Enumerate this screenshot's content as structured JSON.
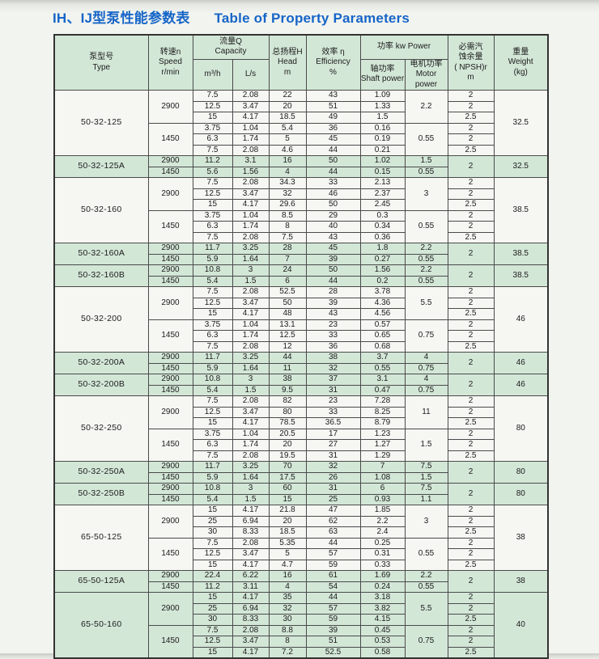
{
  "title": {
    "zh": "IH、IJ型泵性能参数表",
    "en": "Table of Property Parameters"
  },
  "colors": {
    "title_blue": "#1665c8",
    "row_green": "#d3e7d7",
    "row_white": "#f6f7f3",
    "border": "#4a4a4a",
    "page_bg": "#f2f4ef"
  },
  "header": {
    "type": "泵型号\nType",
    "speed": "转速n\nSpeed\nr/min",
    "capacity": "流量Q\nCapacity",
    "m3h": "m³/h",
    "ls": "L/s",
    "head": "总扬程H\nHead\nm",
    "efficiency": "效率 η\nEfficiency\n%",
    "power": "功率  kw  Power",
    "shaft": "轴功率\nShaft power",
    "motor": "电机功率\nMotor power",
    "npsh": "必需汽\n蚀余量\n( NPSH)r\nm",
    "weight": "重量\nWeight\n(kg)"
  },
  "groups": [
    {
      "model": "50-32-125",
      "weight": "32.5",
      "bg": "white",
      "speeds": [
        {
          "rpm": "2900",
          "motor": "2.2",
          "rows": [
            [
              "7.5",
              "2.08",
              "22",
              "43",
              "1.09"
            ],
            [
              "12.5",
              "3.47",
              "20",
              "51",
              "1.33"
            ],
            [
              "15",
              "4.17",
              "18.5",
              "49",
              "1.5"
            ]
          ]
        },
        {
          "rpm": "1450",
          "motor": "0.55",
          "rows": [
            [
              "3.75",
              "1.04",
              "5.4",
              "36",
              "0.16"
            ],
            [
              "6.3",
              "1.74",
              "5",
              "45",
              "0.19"
            ],
            [
              "7.5",
              "2.08",
              "4.6",
              "44",
              "0.21"
            ]
          ]
        }
      ],
      "npsh": [
        "2",
        "2",
        "2.5",
        "2",
        "2",
        "2.5"
      ]
    },
    {
      "model": "50-32-125A",
      "weight": "32.5",
      "bg": "green",
      "speeds": [
        {
          "rpm": "2900",
          "motor": "1.5",
          "rows": [
            [
              "11.2",
              "3.1",
              "16",
              "50",
              "1.02"
            ]
          ]
        },
        {
          "rpm": "1450",
          "motor": "0.55",
          "rows": [
            [
              "5.6",
              "1.56",
              "4",
              "44",
              "0.15"
            ]
          ]
        }
      ],
      "npsh": "2"
    },
    {
      "model": "50-32-160",
      "weight": "38.5",
      "bg": "white",
      "speeds": [
        {
          "rpm": "2900",
          "motor": "3",
          "rows": [
            [
              "7.5",
              "2.08",
              "34.3",
              "33",
              "2.13"
            ],
            [
              "12.5",
              "3.47",
              "32",
              "46",
              "2.37"
            ],
            [
              "15",
              "4.17",
              "29.6",
              "50",
              "2.45"
            ]
          ]
        },
        {
          "rpm": "1450",
          "motor": "0.55",
          "rows": [
            [
              "3.75",
              "1.04",
              "8.5",
              "29",
              "0.3"
            ],
            [
              "6.3",
              "1.74",
              "8",
              "40",
              "0.34"
            ],
            [
              "7.5",
              "2.08",
              "7.5",
              "43",
              "0.36"
            ]
          ]
        }
      ],
      "npsh": [
        "2",
        "2",
        "2.5",
        "2",
        "2",
        "2.5"
      ]
    },
    {
      "model": "50-32-160A",
      "weight": "38.5",
      "bg": "green",
      "speeds": [
        {
          "rpm": "2900",
          "motor": "2.2",
          "rows": [
            [
              "11.7",
              "3.25",
              "28",
              "45",
              "1.8"
            ]
          ]
        },
        {
          "rpm": "1450",
          "motor": "0.55",
          "rows": [
            [
              "5.9",
              "1.64",
              "7",
              "39",
              "0.27"
            ]
          ]
        }
      ],
      "npsh": "2"
    },
    {
      "model": "50-32-160B",
      "weight": "38.5",
      "bg": "green",
      "speeds": [
        {
          "rpm": "2900",
          "motor": "2.2",
          "rows": [
            [
              "10.8",
              "3",
              "24",
              "50",
              "1.56"
            ]
          ]
        },
        {
          "rpm": "1450",
          "motor": "0.55",
          "rows": [
            [
              "5.4",
              "1.5",
              "6",
              "44",
              "0.2"
            ]
          ]
        }
      ],
      "npsh": "2"
    },
    {
      "model": "50-32-200",
      "weight": "46",
      "bg": "white",
      "speeds": [
        {
          "rpm": "2900",
          "motor": "5.5",
          "rows": [
            [
              "7.5",
              "2.08",
              "52.5",
              "28",
              "3.78"
            ],
            [
              "12.5",
              "3.47",
              "50",
              "39",
              "4.36"
            ],
            [
              "15",
              "4.17",
              "48",
              "43",
              "4.56"
            ]
          ]
        },
        {
          "rpm": "1450",
          "motor": "0.75",
          "rows": [
            [
              "3.75",
              "1.04",
              "13.1",
              "23",
              "0.57"
            ],
            [
              "6.3",
              "1.74",
              "12.5",
              "33",
              "0.65"
            ],
            [
              "7.5",
              "2.08",
              "12",
              "36",
              "0.68"
            ]
          ]
        }
      ],
      "npsh": [
        "2",
        "2",
        "2.5",
        "2",
        "2",
        "2.5"
      ]
    },
    {
      "model": "50-32-200A",
      "weight": "46",
      "bg": "green",
      "speeds": [
        {
          "rpm": "2900",
          "motor": "4",
          "rows": [
            [
              "11.7",
              "3.25",
              "44",
              "38",
              "3.7"
            ]
          ]
        },
        {
          "rpm": "1450",
          "motor": "0.75",
          "rows": [
            [
              "5.9",
              "1.64",
              "11",
              "32",
              "0.55"
            ]
          ]
        }
      ],
      "npsh": "2"
    },
    {
      "model": "50-32-200B",
      "weight": "46",
      "bg": "green",
      "speeds": [
        {
          "rpm": "2900",
          "motor": "4",
          "rows": [
            [
              "10.8",
              "3",
              "38",
              "37",
              "3.1"
            ]
          ]
        },
        {
          "rpm": "1450",
          "motor": "0.75",
          "rows": [
            [
              "5.4",
              "1.5",
              "9.5",
              "31",
              "0.47"
            ]
          ]
        }
      ],
      "npsh": "2"
    },
    {
      "model": "50-32-250",
      "weight": "80",
      "bg": "white",
      "speeds": [
        {
          "rpm": "2900",
          "motor": "11",
          "rows": [
            [
              "7.5",
              "2.08",
              "82",
              "23",
              "7.28"
            ],
            [
              "12.5",
              "3.47",
              "80",
              "33",
              "8.25"
            ],
            [
              "15",
              "4.17",
              "78.5",
              "36.5",
              "8.79"
            ]
          ]
        },
        {
          "rpm": "1450",
          "motor": "1.5",
          "rows": [
            [
              "3.75",
              "1.04",
              "20.5",
              "17",
              "1.23"
            ],
            [
              "6.3",
              "1.74",
              "20",
              "27",
              "1.27"
            ],
            [
              "7.5",
              "2.08",
              "19.5",
              "31",
              "1.29"
            ]
          ]
        }
      ],
      "npsh": [
        "2",
        "2",
        "2.5",
        "2",
        "2",
        "2.5"
      ]
    },
    {
      "model": "50-32-250A",
      "weight": "80",
      "bg": "green",
      "speeds": [
        {
          "rpm": "2900",
          "motor": "7.5",
          "rows": [
            [
              "11.7",
              "3.25",
              "70",
              "32",
              "7"
            ]
          ]
        },
        {
          "rpm": "1450",
          "motor": "1.5",
          "rows": [
            [
              "5.9",
              "1.64",
              "17.5",
              "26",
              "1.08"
            ]
          ]
        }
      ],
      "npsh": "2"
    },
    {
      "model": "50-32-250B",
      "weight": "80",
      "bg": "green",
      "speeds": [
        {
          "rpm": "2900",
          "motor": "7.5",
          "rows": [
            [
              "10.8",
              "3",
              "60",
              "31",
              "6"
            ]
          ]
        },
        {
          "rpm": "1450",
          "motor": "1.1",
          "rows": [
            [
              "5.4",
              "1.5",
              "15",
              "25",
              "0.93"
            ]
          ]
        }
      ],
      "npsh": "2"
    },
    {
      "model": "65-50-125",
      "weight": "38",
      "bg": "white",
      "speeds": [
        {
          "rpm": "2900",
          "motor": "3",
          "rows": [
            [
              "15",
              "4.17",
              "21.8",
              "47",
              "1.85"
            ],
            [
              "25",
              "6.94",
              "20",
              "62",
              "2.2"
            ],
            [
              "30",
              "8.33",
              "18.5",
              "63",
              "2.4"
            ]
          ]
        },
        {
          "rpm": "1450",
          "motor": "0.55",
          "rows": [
            [
              "7.5",
              "2.08",
              "5.35",
              "44",
              "0.25"
            ],
            [
              "12.5",
              "3.47",
              "5",
              "57",
              "0.31"
            ],
            [
              "15",
              "4.17",
              "4.7",
              "59",
              "0.33"
            ]
          ]
        }
      ],
      "npsh": [
        "2",
        "2",
        "2.5",
        "2",
        "2",
        "2.5"
      ]
    },
    {
      "model": "65-50-125A",
      "weight": "38",
      "bg": "green",
      "speeds": [
        {
          "rpm": "2900",
          "motor": "2.2",
          "rows": [
            [
              "22.4",
              "6.22",
              "16",
              "61",
              "1.69"
            ]
          ]
        },
        {
          "rpm": "1450",
          "motor": "0.55",
          "rows": [
            [
              "11.2",
              "3.11",
              "4",
              "54",
              "0.24"
            ]
          ]
        }
      ],
      "npsh": "2"
    },
    {
      "model": "65-50-160",
      "weight": "40",
      "bg": "green",
      "speeds": [
        {
          "rpm": "2900",
          "motor": "5.5",
          "rows": [
            [
              "15",
              "4.17",
              "35",
              "44",
              "3.18"
            ],
            [
              "25",
              "6.94",
              "32",
              "57",
              "3.82"
            ],
            [
              "30",
              "8.33",
              "30",
              "59",
              "4.15"
            ]
          ]
        },
        {
          "rpm": "1450",
          "motor": "0.75",
          "rows": [
            [
              "7.5",
              "2.08",
              "8.8",
              "39",
              "0.45"
            ],
            [
              "12.5",
              "3.47",
              "8",
              "51",
              "0.53"
            ],
            [
              "15",
              "4.17",
              "7.2",
              "52.5",
              "0.58"
            ]
          ]
        }
      ],
      "npsh": [
        "2",
        "2",
        "2.5",
        "2",
        "2",
        "2.5"
      ]
    }
  ]
}
